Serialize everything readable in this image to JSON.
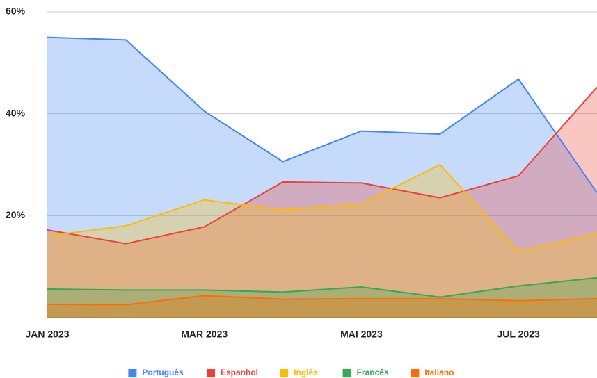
{
  "chart_data": {
    "type": "area",
    "categories": [
      "JAN 2023",
      null,
      "MAR 2023",
      null,
      "MAI 2023",
      null,
      "JUL 2023",
      null
    ],
    "series": [
      {
        "name": "Português",
        "color": "#4285f4",
        "values": [
          55,
          54.5,
          40.5,
          30.6,
          36.6,
          36,
          46.8,
          24.5
        ]
      },
      {
        "name": "Espanhol",
        "color": "#ea4335",
        "values": [
          17.2,
          14.5,
          17.8,
          26.6,
          26.4,
          23.5,
          27.8,
          45.2
        ]
      },
      {
        "name": "Inglês",
        "color": "#fbbc04",
        "values": [
          16,
          18,
          23.1,
          21.1,
          22.3,
          30,
          13,
          16.5
        ]
      },
      {
        "name": "Francês",
        "color": "#34a853",
        "values": [
          5.6,
          5.4,
          5.4,
          5,
          6,
          4,
          6.2,
          7.8
        ]
      },
      {
        "name": "Italiano",
        "color": "#ff6d01",
        "values": [
          2.6,
          2.5,
          4.3,
          3.6,
          3.7,
          3.7,
          3.3,
          3.7
        ]
      }
    ],
    "ylim": [
      0,
      60
    ],
    "yticks": [
      {
        "value": 20,
        "label": "20%"
      },
      {
        "value": 40,
        "label": "40%"
      },
      {
        "value": 60,
        "label": "60%"
      }
    ],
    "grid": true,
    "legend": "bottom"
  }
}
